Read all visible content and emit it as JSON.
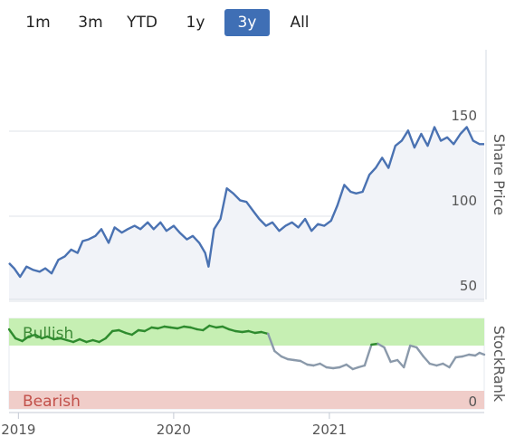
{
  "range_selector": {
    "buttons": [
      "1m",
      "3m",
      "YTD",
      "1y",
      "3y",
      "All"
    ],
    "active": "3y"
  },
  "colors": {
    "price_line": "#4a72b2",
    "price_fill": "#f1f3f8",
    "active_button": "#3f6fb5",
    "bullish_band": "#c6efb3",
    "bearish_band": "#f0cdc9",
    "bullish_line": "#2e8b2e",
    "neutral_line": "#8a99aa",
    "bullish_text": "#3d8b37",
    "bearish_text": "#c2504a"
  },
  "chart_data": [
    {
      "type": "line",
      "ylabel": "Share Price",
      "yticks": [
        50,
        100,
        150
      ],
      "ylim": [
        45,
        155
      ],
      "xlim": [
        "2018-12-10",
        "2021-12-31"
      ],
      "xticks": [
        "2019",
        "2020",
        "2021"
      ],
      "grid": true,
      "series": [
        {
          "x": [
            "2018-12-10",
            "2018-12-22",
            "2019-01-05",
            "2019-01-20",
            "2019-02-05",
            "2019-02-20",
            "2019-03-05",
            "2019-03-20",
            "2019-04-05",
            "2019-04-20",
            "2019-05-05",
            "2019-05-20",
            "2019-06-01",
            "2019-06-15",
            "2019-07-01",
            "2019-07-15",
            "2019-08-01",
            "2019-08-15",
            "2019-09-01",
            "2019-09-15",
            "2019-10-01",
            "2019-10-15",
            "2019-11-01",
            "2019-11-15",
            "2019-12-01",
            "2019-12-15",
            "2020-01-01",
            "2020-01-15",
            "2020-02-01",
            "2020-02-15",
            "2020-03-01",
            "2020-03-15",
            "2020-03-23",
            "2020-04-05",
            "2020-04-20",
            "2020-05-05",
            "2020-05-20",
            "2020-06-05",
            "2020-06-20",
            "2020-07-05",
            "2020-07-20",
            "2020-08-05",
            "2020-08-20",
            "2020-09-05",
            "2020-09-20",
            "2020-10-05",
            "2020-10-20",
            "2020-11-05",
            "2020-11-20",
            "2020-12-05",
            "2020-12-20",
            "2021-01-05",
            "2021-01-20",
            "2021-02-05",
            "2021-02-20",
            "2021-03-05",
            "2021-03-20",
            "2021-04-05",
            "2021-04-20",
            "2021-05-05",
            "2021-05-20",
            "2021-06-05",
            "2021-06-20",
            "2021-07-05",
            "2021-07-20",
            "2021-08-05",
            "2021-08-20",
            "2021-09-05",
            "2021-09-20",
            "2021-10-05",
            "2021-10-20",
            "2021-11-05",
            "2021-11-20",
            "2021-12-05",
            "2021-12-20",
            "2021-12-31"
          ],
          "values": [
            66,
            63,
            58,
            64,
            62,
            61,
            63,
            60,
            68,
            70,
            74,
            72,
            79,
            80,
            82,
            86,
            78,
            87,
            84,
            86,
            88,
            86,
            90,
            86,
            90,
            85,
            88,
            84,
            80,
            82,
            78,
            72,
            64,
            86,
            92,
            110,
            107,
            103,
            102,
            97,
            92,
            88,
            90,
            85,
            88,
            90,
            87,
            92,
            85,
            89,
            88,
            91,
            100,
            112,
            108,
            107,
            108,
            118,
            122,
            128,
            122,
            135,
            138,
            144,
            134,
            142,
            135,
            146,
            138,
            140,
            136,
            142,
            146,
            138,
            136,
            136
          ]
        }
      ]
    },
    {
      "type": "line",
      "ylabel": "StockRank",
      "yticks": [
        0
      ],
      "ylim": [
        0,
        100
      ],
      "bands": [
        {
          "label": "Bullish",
          "from": 70,
          "to": 100
        },
        {
          "label": "Bearish",
          "from": 0,
          "to": 20
        }
      ],
      "series": [
        {
          "x": [
            "2018-12-10",
            "2018-12-25",
            "2019-01-10",
            "2019-01-25",
            "2019-02-10",
            "2019-02-25",
            "2019-03-10",
            "2019-03-25",
            "2019-04-10",
            "2019-04-25",
            "2019-05-10",
            "2019-05-25",
            "2019-06-10",
            "2019-06-25",
            "2019-07-10",
            "2019-07-25",
            "2019-08-10",
            "2019-08-25",
            "2019-09-10",
            "2019-09-25",
            "2019-10-10",
            "2019-10-25",
            "2019-11-10",
            "2019-11-25",
            "2019-12-10",
            "2019-12-25",
            "2020-01-10",
            "2020-01-25",
            "2020-02-10",
            "2020-02-25",
            "2020-03-10",
            "2020-03-25",
            "2020-04-10",
            "2020-04-25",
            "2020-05-10",
            "2020-05-25",
            "2020-06-10",
            "2020-06-25",
            "2020-07-10",
            "2020-07-25",
            "2020-08-10",
            "2020-08-25",
            "2020-09-10",
            "2020-09-25",
            "2020-10-10",
            "2020-10-25",
            "2020-11-10",
            "2020-11-25",
            "2020-12-10",
            "2020-12-25",
            "2021-01-10",
            "2021-01-25",
            "2021-02-10",
            "2021-02-25",
            "2021-03-10",
            "2021-03-25",
            "2021-04-10",
            "2021-04-25",
            "2021-05-10",
            "2021-05-25",
            "2021-06-10",
            "2021-06-25",
            "2021-07-10",
            "2021-07-25",
            "2021-08-10",
            "2021-08-25",
            "2021-09-10",
            "2021-09-25",
            "2021-10-10",
            "2021-10-25",
            "2021-11-10",
            "2021-11-25",
            "2021-12-10",
            "2021-12-20",
            "2021-12-31"
          ],
          "values": [
            88,
            78,
            75,
            80,
            82,
            78,
            80,
            77,
            78,
            76,
            74,
            77,
            74,
            76,
            74,
            78,
            86,
            87,
            84,
            82,
            87,
            86,
            90,
            89,
            91,
            90,
            89,
            91,
            90,
            88,
            87,
            92,
            90,
            91,
            88,
            86,
            85,
            86,
            84,
            85,
            83,
            64,
            58,
            55,
            54,
            53,
            49,
            48,
            50,
            46,
            45,
            46,
            49,
            44,
            46,
            48,
            71,
            72,
            68,
            52,
            54,
            46,
            70,
            68,
            58,
            50,
            48,
            50,
            46,
            57,
            58,
            60,
            59,
            62,
            60
          ]
        }
      ]
    }
  ]
}
